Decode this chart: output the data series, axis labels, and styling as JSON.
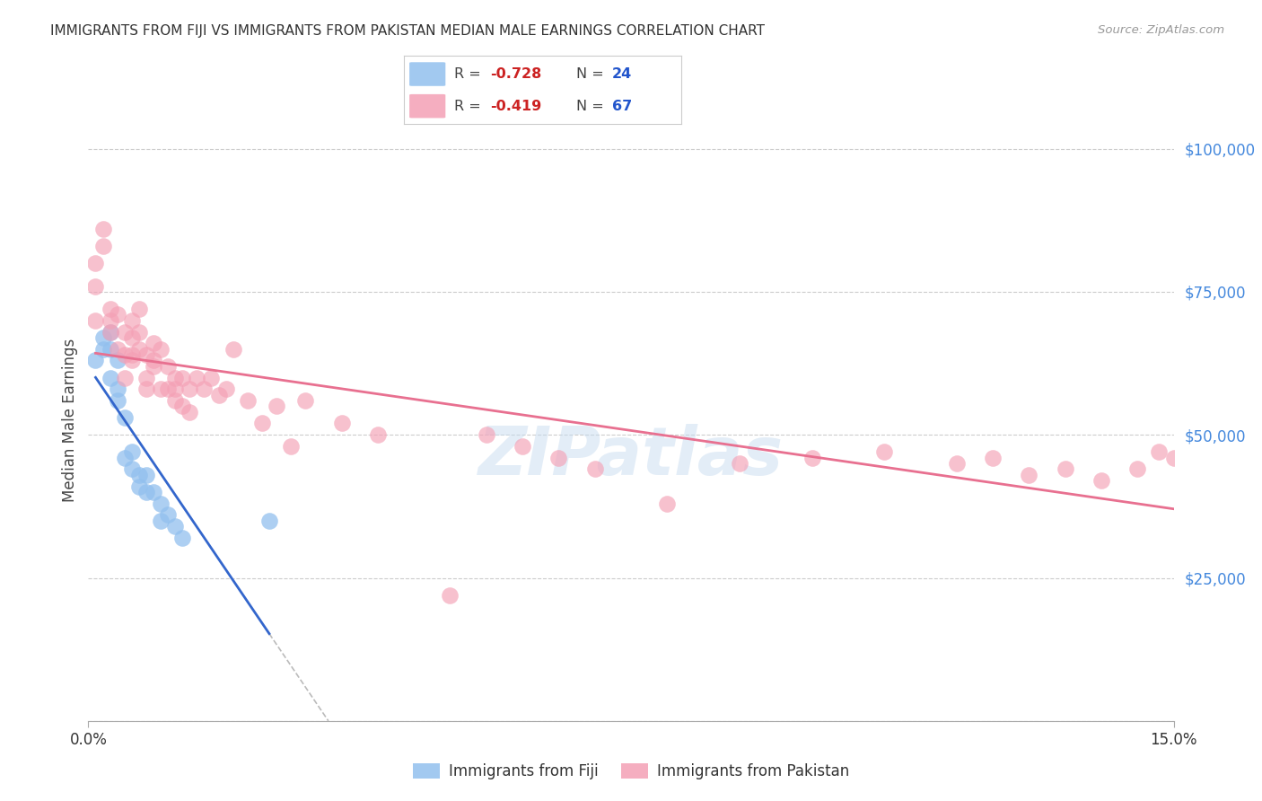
{
  "title": "IMMIGRANTS FROM FIJI VS IMMIGRANTS FROM PAKISTAN MEDIAN MALE EARNINGS CORRELATION CHART",
  "source": "Source: ZipAtlas.com",
  "ylabel_label": "Median Male Earnings",
  "right_yticks": [
    0,
    25000,
    50000,
    75000,
    100000
  ],
  "right_ytick_labels": [
    "",
    "$25,000",
    "$50,000",
    "$75,000",
    "$100,000"
  ],
  "xlim": [
    0.0,
    0.15
  ],
  "ylim": [
    0,
    105000
  ],
  "fiji_R": -0.728,
  "fiji_N": 24,
  "pakistan_R": -0.419,
  "pakistan_N": 67,
  "fiji_color": "#92C0EE",
  "pakistan_color": "#F4A0B5",
  "fiji_line_color": "#3366CC",
  "pakistan_line_color": "#E87090",
  "dashed_line_color": "#BBBBBB",
  "background_color": "#FFFFFF",
  "watermark": "ZIPatlas",
  "fiji_points_x": [
    0.001,
    0.002,
    0.002,
    0.003,
    0.003,
    0.003,
    0.004,
    0.004,
    0.004,
    0.005,
    0.005,
    0.006,
    0.006,
    0.007,
    0.007,
    0.008,
    0.008,
    0.009,
    0.01,
    0.01,
    0.011,
    0.012,
    0.013,
    0.025
  ],
  "fiji_points_y": [
    63000,
    67000,
    65000,
    68000,
    65000,
    60000,
    63000,
    58000,
    56000,
    53000,
    46000,
    47000,
    44000,
    43000,
    41000,
    40000,
    43000,
    40000,
    38000,
    35000,
    36000,
    34000,
    32000,
    35000
  ],
  "pakistan_points_x": [
    0.001,
    0.001,
    0.002,
    0.002,
    0.003,
    0.003,
    0.004,
    0.004,
    0.005,
    0.005,
    0.005,
    0.006,
    0.006,
    0.006,
    0.007,
    0.007,
    0.007,
    0.008,
    0.008,
    0.008,
    0.009,
    0.009,
    0.01,
    0.01,
    0.011,
    0.011,
    0.012,
    0.012,
    0.013,
    0.013,
    0.014,
    0.014,
    0.015,
    0.016,
    0.017,
    0.018,
    0.019,
    0.02,
    0.022,
    0.024,
    0.026,
    0.028,
    0.03,
    0.035,
    0.04,
    0.05,
    0.055,
    0.06,
    0.065,
    0.07,
    0.08,
    0.09,
    0.1,
    0.11,
    0.12,
    0.125,
    0.13,
    0.135,
    0.14,
    0.145,
    0.148,
    0.15,
    0.001,
    0.003,
    0.006,
    0.009,
    0.012
  ],
  "pakistan_points_y": [
    80000,
    76000,
    86000,
    83000,
    72000,
    68000,
    71000,
    65000,
    68000,
    64000,
    60000,
    70000,
    67000,
    63000,
    72000,
    68000,
    65000,
    64000,
    60000,
    58000,
    66000,
    62000,
    65000,
    58000,
    62000,
    58000,
    60000,
    56000,
    60000,
    55000,
    58000,
    54000,
    60000,
    58000,
    60000,
    57000,
    58000,
    65000,
    56000,
    52000,
    55000,
    48000,
    56000,
    52000,
    50000,
    22000,
    50000,
    48000,
    46000,
    44000,
    38000,
    45000,
    46000,
    47000,
    45000,
    46000,
    43000,
    44000,
    42000,
    44000,
    47000,
    46000,
    70000,
    70000,
    64000,
    63000,
    58000
  ]
}
